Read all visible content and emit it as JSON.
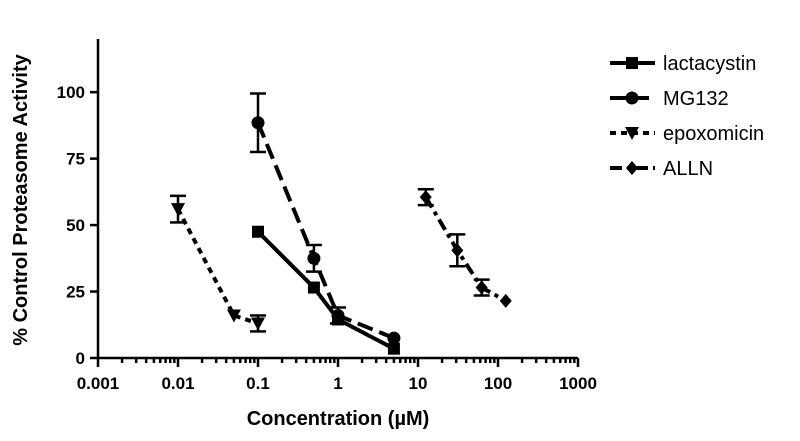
{
  "chart_data": {
    "type": "line",
    "xlabel": "Concentration (µM)",
    "ylabel": "% Control Proteasome Activity",
    "xscale": "log",
    "xlim": [
      0.001,
      1000
    ],
    "ylim": [
      0,
      120
    ],
    "xticks": [
      0.001,
      0.01,
      0.1,
      1,
      10,
      100,
      1000
    ],
    "xtick_labels": [
      "0.001",
      "0.01",
      "0.1",
      "1",
      "10",
      "100",
      "1000"
    ],
    "yticks": [
      0,
      25,
      50,
      75,
      100
    ],
    "ytick_labels": [
      "0",
      "25",
      "50",
      "75",
      "100"
    ],
    "grid": false,
    "legend": "top-right",
    "series": [
      {
        "name": "lactacystin",
        "marker": "square",
        "line": "solid",
        "points": [
          {
            "x": 0.1,
            "y": 47.5,
            "err": 0
          },
          {
            "x": 0.5,
            "y": 26.5,
            "err": 0
          },
          {
            "x": 1,
            "y": 14.5,
            "err": 0
          },
          {
            "x": 5,
            "y": 3.5,
            "err": 0
          }
        ]
      },
      {
        "name": "MG132",
        "marker": "circle",
        "line": "long-dash",
        "points": [
          {
            "x": 0.1,
            "y": 88.5,
            "err": 11
          },
          {
            "x": 0.5,
            "y": 37.5,
            "err": 5
          },
          {
            "x": 1,
            "y": 16,
            "err": 3
          },
          {
            "x": 5,
            "y": 7.5,
            "err": 0
          }
        ]
      },
      {
        "name": "epoxomicin",
        "marker": "triangle-down",
        "line": "short-dash",
        "points": [
          {
            "x": 0.01,
            "y": 56,
            "err": 5
          },
          {
            "x": 0.05,
            "y": 16,
            "err": 0
          },
          {
            "x": 0.1,
            "y": 13,
            "err": 3
          }
        ]
      },
      {
        "name": "ALLN",
        "marker": "diamond",
        "line": "dash-dot",
        "points": [
          {
            "x": 12.5,
            "y": 60.5,
            "err": 3
          },
          {
            "x": 31,
            "y": 40.5,
            "err": 6
          },
          {
            "x": 62.5,
            "y": 26.5,
            "err": 3
          },
          {
            "x": 125,
            "y": 21.5,
            "err": 0
          }
        ]
      }
    ]
  }
}
